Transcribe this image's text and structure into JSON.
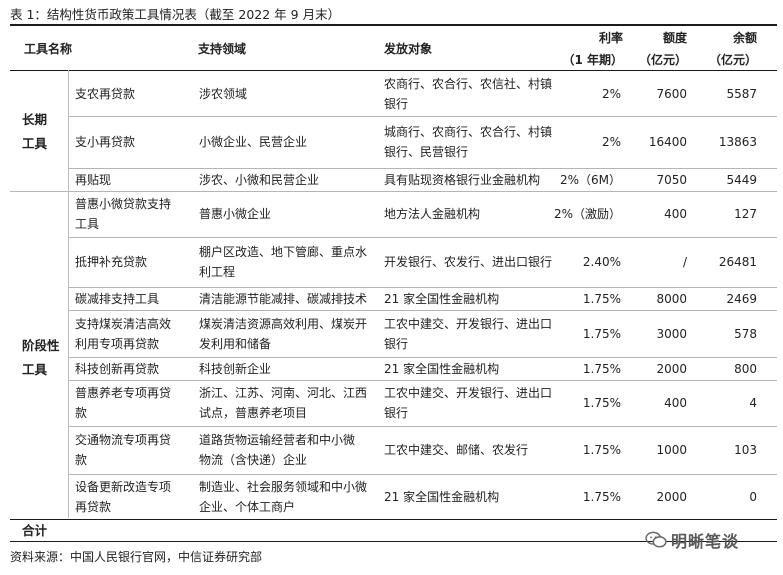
{
  "caption": "表 1：结构性货币政策工具情况表（截至 2022 年 9 月末）",
  "headers": {
    "name": "工具名称",
    "area": "支持领域",
    "target": "发放对象",
    "rate_line1": "利率",
    "rate_line2": "（1 年期）",
    "quota_line1": "额度",
    "quota_line2": "（亿元）",
    "balance_line1": "余额",
    "balance_line2": "（亿元）"
  },
  "groups": {
    "long_line1": "长期",
    "long_line2": "工具",
    "stage_line1": "阶段性",
    "stage_line2": "工具",
    "total": "合计"
  },
  "rows": [
    {
      "name": [
        "支农再贷款"
      ],
      "area": [
        "涉农领域"
      ],
      "target": [
        "农商行、农合行、农信社、村镇",
        "银行"
      ],
      "rate": "2%",
      "quota": "7600",
      "balance": "5587"
    },
    {
      "name": [
        "支小再贷款"
      ],
      "area": [
        "小微企业、民营企业"
      ],
      "target": [
        "城商行、农商行、农合行、村镇",
        "银行、民营银行"
      ],
      "rate": "2%",
      "quota": "16400",
      "balance": "13863"
    },
    {
      "name": [
        "再贴现"
      ],
      "area": [
        "涉农、小微和民营企业"
      ],
      "target": [
        "具有贴现资格银行业金融机构"
      ],
      "rate": "2%（6M）",
      "quota": "7050",
      "balance": "5449"
    },
    {
      "name": [
        "普惠小微贷款支持",
        "工具"
      ],
      "area": [
        "普惠小微企业"
      ],
      "target": [
        "地方法人金融机构"
      ],
      "rate": "2%（激励）",
      "quota": "400",
      "balance": "127"
    },
    {
      "name": [
        "抵押补充贷款"
      ],
      "area": [
        "棚户区改造、地下管廊、重点水",
        "利工程"
      ],
      "target": [
        "开发银行、农发行、进出口银行"
      ],
      "rate": "2.40%",
      "quota": "/",
      "balance": "26481"
    },
    {
      "name": [
        "碳减排支持工具"
      ],
      "area": [
        "清洁能源节能减排、碳减排技术"
      ],
      "target": [
        "21 家全国性金融机构"
      ],
      "rate": "1.75%",
      "quota": "8000",
      "balance": "2469"
    },
    {
      "name": [
        "支持煤炭清洁高效",
        "利用专项再贷款"
      ],
      "area": [
        "煤炭清洁资源高效利用、煤炭开",
        "发利用和储备"
      ],
      "target": [
        "工农中建交、开发银行、进出口",
        "银行"
      ],
      "rate": "1.75%",
      "quota": "3000",
      "balance": "578"
    },
    {
      "name": [
        "科技创新再贷款"
      ],
      "area": [
        "科技创新企业"
      ],
      "target": [
        "21 家全国性金融机构"
      ],
      "rate": "1.75%",
      "quota": "2000",
      "balance": "800"
    },
    {
      "name": [
        "普惠养老专项再贷",
        "款"
      ],
      "area": [
        "浙江、江苏、河南、河北、江西",
        "试点，普惠养老项目"
      ],
      "target": [
        "工农中建交、开发银行、进出口",
        "银行"
      ],
      "rate": "1.75%",
      "quota": "400",
      "balance": "4"
    },
    {
      "name": [
        "交通物流专项再贷",
        "款"
      ],
      "area": [
        "道路货物运输经营者和中小微",
        "物流（含快递）企业"
      ],
      "target": [
        "工农中建交、邮储、农发行"
      ],
      "rate": "1.75%",
      "quota": "1000",
      "balance": "103"
    },
    {
      "name": [
        "设备更新改造专项",
        "再贷款"
      ],
      "area": [
        "制造业、社会服务领域和中小微",
        "企业、个体工商户"
      ],
      "target": [
        "21 家全国性金融机构"
      ],
      "rate": "1.75%",
      "quota": "2000",
      "balance": "0"
    }
  ],
  "source": "资料来源：中国人民银行官网，中信证券研究部",
  "watermark": "明晰笔谈",
  "icons": {
    "watermark_icon": "wechat-icon"
  }
}
